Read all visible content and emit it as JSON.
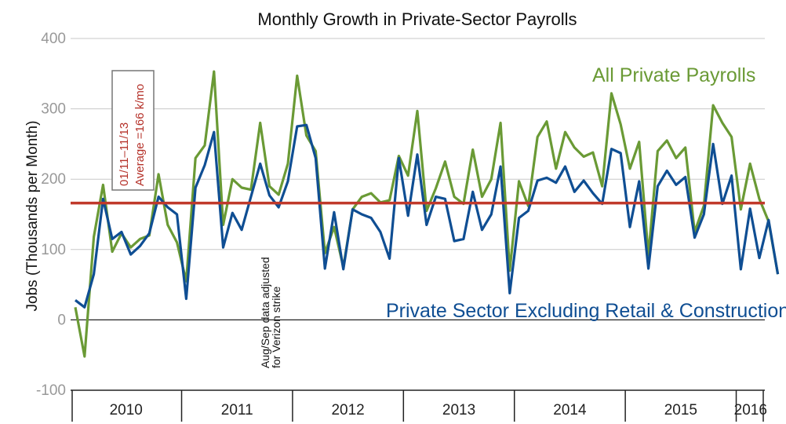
{
  "chart_data": {
    "type": "line",
    "title": "Monthly Growth in Private-Sector Payrolls",
    "ylabel": "Jobs (Thousands per Month)",
    "xlabel": "",
    "ylim": [
      -100,
      400
    ],
    "yticks": [
      -100,
      0,
      100,
      200,
      300,
      400
    ],
    "years": [
      "2010",
      "2011",
      "2012",
      "2013",
      "2014",
      "2015",
      "2016"
    ],
    "months_per_year": [
      12,
      12,
      12,
      12,
      12,
      12,
      3
    ],
    "series": [
      {
        "name": "All Private Payrolls",
        "color": "#6a9a35",
        "values": [
          18,
          -52,
          118,
          192,
          97,
          123,
          103,
          115,
          120,
          207,
          135,
          110,
          55,
          230,
          248,
          353,
          135,
          200,
          188,
          185,
          280,
          190,
          178,
          222,
          347,
          262,
          240,
          95,
          132,
          75,
          157,
          175,
          180,
          167,
          170,
          233,
          205,
          297,
          155,
          187,
          225,
          175,
          165,
          242,
          175,
          200,
          280,
          70,
          197,
          162,
          260,
          282,
          215,
          267,
          245,
          232,
          238,
          190,
          322,
          278,
          215,
          253,
          92,
          240,
          255,
          230,
          245,
          125,
          162,
          305,
          280,
          260,
          157,
          222,
          172,
          140,
          65
        ]
      },
      {
        "name": "Private Sector Excluding Retail & Construction",
        "color": "#0f4e93",
        "values": [
          28,
          18,
          65,
          172,
          115,
          125,
          93,
          105,
          123,
          175,
          160,
          150,
          30,
          188,
          220,
          267,
          103,
          152,
          128,
          175,
          222,
          177,
          160,
          197,
          275,
          277,
          230,
          73,
          153,
          72,
          157,
          150,
          145,
          125,
          87,
          230,
          148,
          235,
          135,
          175,
          172,
          112,
          115,
          182,
          128,
          150,
          218,
          38,
          145,
          155,
          198,
          202,
          195,
          218,
          182,
          198,
          180,
          165,
          243,
          237,
          132,
          197,
          73,
          190,
          212,
          192,
          203,
          117,
          150,
          250,
          165,
          205,
          72,
          158,
          88,
          142,
          65
        ]
      }
    ],
    "reference_line": {
      "value": 166,
      "color": "#c0392b",
      "label_period": "01/11–11/13",
      "label_average": "Average =166 k/mo"
    },
    "annotations": [
      {
        "line1": "Aug/Sep data adjusted",
        "line2": "for Verizon strike"
      }
    ],
    "legend": {
      "green": "All Private Payrolls",
      "blue": "Private Sector Excluding Retail & Construction"
    }
  }
}
